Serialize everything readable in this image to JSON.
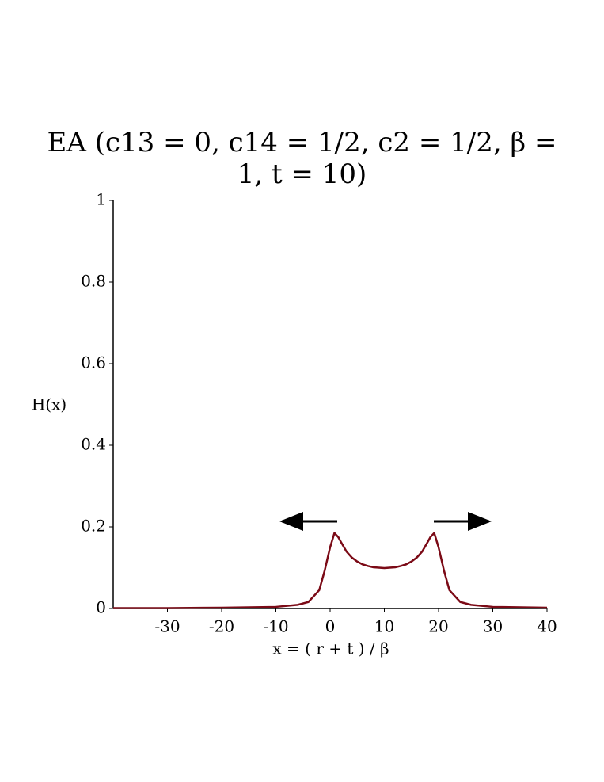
{
  "chart_data": {
    "type": "line",
    "title": "EA (c13 = 0, c14 = 1/2, c2 = 1/2,  β  =\n1,  t = 10)",
    "xlabel": "x = ( r + t ) / β",
    "ylabel": "H(x)",
    "x": [
      -40,
      -30,
      -20,
      -10,
      -6,
      -4,
      -2,
      -1,
      0,
      0.8,
      1.5,
      2,
      3,
      4,
      5,
      6,
      7,
      8,
      9,
      10,
      11,
      12,
      13,
      14,
      15,
      16,
      17,
      18,
      18.5,
      19.2,
      20,
      21,
      22,
      24,
      26,
      30,
      40
    ],
    "series": [
      {
        "name": "H(x)",
        "color": "#7b0a16",
        "values": [
          0.001,
          0.001,
          0.002,
          0.004,
          0.009,
          0.016,
          0.045,
          0.093,
          0.15,
          0.185,
          0.175,
          0.163,
          0.14,
          0.125,
          0.115,
          0.108,
          0.104,
          0.101,
          0.1,
          0.099,
          0.1,
          0.101,
          0.104,
          0.108,
          0.115,
          0.125,
          0.14,
          0.163,
          0.175,
          0.185,
          0.15,
          0.093,
          0.045,
          0.016,
          0.009,
          0.004,
          0.002
        ]
      }
    ],
    "xlim": [
      -40,
      40
    ],
    "xticks": [
      -30,
      -20,
      -10,
      0,
      10,
      20,
      30,
      40
    ],
    "ylim": [
      0,
      1
    ],
    "yticks": [
      0,
      0.2,
      0.4,
      0.6,
      0.8,
      1
    ]
  }
}
